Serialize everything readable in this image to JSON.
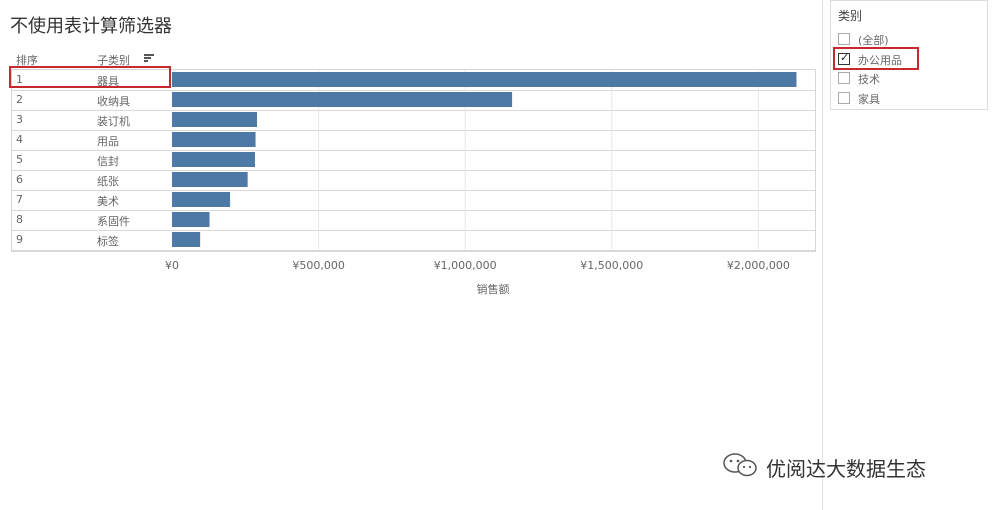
{
  "title": "不使用表计算筛选器",
  "columns": {
    "rank": "排序",
    "subcategory": "子类别"
  },
  "filter": {
    "title": "类别",
    "options": [
      {
        "label": "(全部)",
        "checked": false
      },
      {
        "label": "办公用品",
        "checked": true
      },
      {
        "label": "技术",
        "checked": false
      },
      {
        "label": "家具",
        "checked": false
      }
    ]
  },
  "watermark": "优阅达大数据生态",
  "colors": {
    "bar": "#4e79a7",
    "highlight": "#c8282e"
  },
  "chart_data": {
    "type": "bar",
    "orientation": "horizontal",
    "ranks": [
      "1",
      "2",
      "3",
      "4",
      "5",
      "6",
      "7",
      "8",
      "9"
    ],
    "categories": [
      "器具",
      "收纳具",
      "装订机",
      "用品",
      "信封",
      "纸张",
      "美术",
      "系固件",
      "标签"
    ],
    "values": [
      2130000,
      1160000,
      290000,
      285000,
      283000,
      258000,
      198000,
      128000,
      96000
    ],
    "xlabel": "销售额",
    "xlim": [
      0,
      2200000
    ],
    "xticks": [
      0,
      500000,
      1000000,
      1500000,
      2000000
    ],
    "xtick_labels": [
      "¥0",
      "¥500,000",
      "¥1,000,000",
      "¥1,500,000",
      "¥2,000,000"
    ],
    "grid": true
  }
}
